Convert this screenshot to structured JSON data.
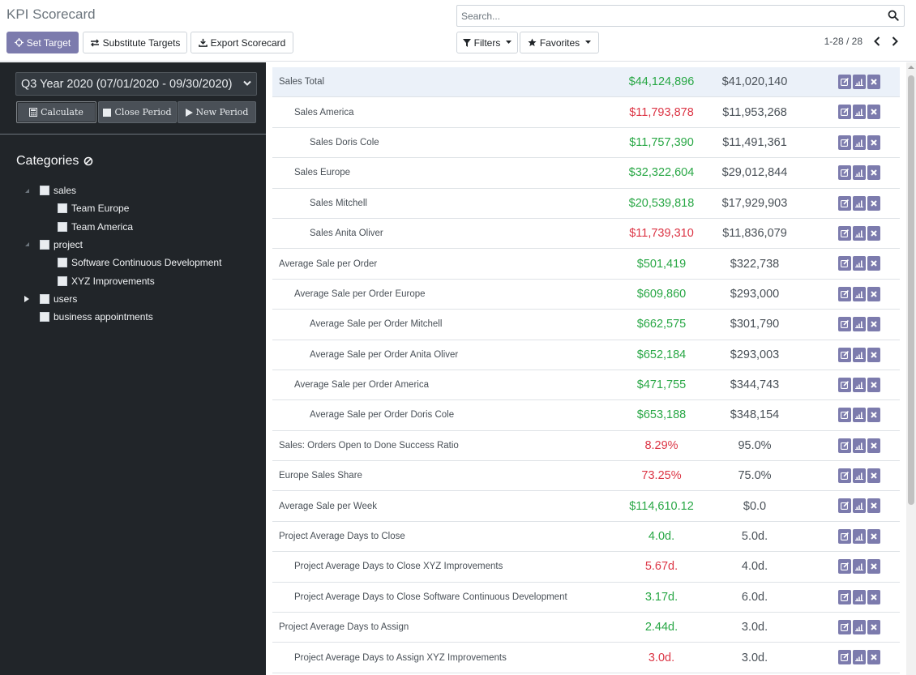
{
  "app": {
    "title": "KPI Scorecard"
  },
  "search": {
    "placeholder": "Search..."
  },
  "toolbar": {
    "set_target": "Set Target",
    "substitute_targets": "Substitute Targets",
    "export_scorecard": "Export Scorecard",
    "filters": "Filters",
    "favorites": "Favorites"
  },
  "pager": {
    "label": "1-28 / 28"
  },
  "sidebar": {
    "period": "Q3 Year 2020 (07/01/2020 - 09/30/2020)",
    "calculate": "Calculate",
    "close_period": "Close Period",
    "new_period": "New Period",
    "categories_title": "Categories",
    "categories": [
      {
        "label": "sales",
        "level": 0,
        "toggle": "collapse"
      },
      {
        "label": "Team Europe",
        "level": 1
      },
      {
        "label": "Team America",
        "level": 1
      },
      {
        "label": "project",
        "level": 0,
        "toggle": "collapse"
      },
      {
        "label": "Software Continuous Development",
        "level": 1
      },
      {
        "label": "XYZ Improvements",
        "level": 1
      },
      {
        "label": "users",
        "level": 0,
        "toggle": "expand"
      },
      {
        "label": "business appointments",
        "level": 0
      }
    ]
  },
  "colors": {
    "good": "#28a745",
    "bad": "#dc3545",
    "accent": "#7c7bad"
  },
  "kpis": [
    {
      "name": "Sales Total",
      "level": 0,
      "actual": "$44,124,896",
      "target": "$41,020,140",
      "status": "good",
      "highlight": true
    },
    {
      "name": "Sales America",
      "level": 1,
      "actual": "$11,793,878",
      "target": "$11,953,268",
      "status": "bad"
    },
    {
      "name": "Sales Doris Cole",
      "level": 2,
      "actual": "$11,757,390",
      "target": "$11,491,361",
      "status": "good"
    },
    {
      "name": "Sales Europe",
      "level": 1,
      "actual": "$32,322,604",
      "target": "$29,012,844",
      "status": "good"
    },
    {
      "name": "Sales Mitchell",
      "level": 2,
      "actual": "$20,539,818",
      "target": "$17,929,903",
      "status": "good"
    },
    {
      "name": "Sales Anita Oliver",
      "level": 2,
      "actual": "$11,739,310",
      "target": "$11,836,079",
      "status": "bad"
    },
    {
      "name": "Average Sale per Order",
      "level": 0,
      "actual": "$501,419",
      "target": "$322,738",
      "status": "good"
    },
    {
      "name": "Average Sale per Order Europe",
      "level": 1,
      "actual": "$609,860",
      "target": "$293,000",
      "status": "good"
    },
    {
      "name": "Average Sale per Order Mitchell",
      "level": 2,
      "actual": "$662,575",
      "target": "$301,790",
      "status": "good"
    },
    {
      "name": "Average Sale per Order Anita Oliver",
      "level": 2,
      "actual": "$652,184",
      "target": "$293,003",
      "status": "good"
    },
    {
      "name": "Average Sale per Order America",
      "level": 1,
      "actual": "$471,755",
      "target": "$344,743",
      "status": "good"
    },
    {
      "name": "Average Sale per Order Doris Cole",
      "level": 2,
      "actual": "$653,188",
      "target": "$348,154",
      "status": "good"
    },
    {
      "name": "Sales: Orders Open to Done Success Ratio",
      "level": 0,
      "actual": "8.29%",
      "target": "95.0%",
      "status": "bad"
    },
    {
      "name": "Europe Sales Share",
      "level": 0,
      "actual": "73.25%",
      "target": "75.0%",
      "status": "bad"
    },
    {
      "name": "Average Sale per Week",
      "level": 0,
      "actual": "$114,610.12",
      "target": "$0.0",
      "status": "good"
    },
    {
      "name": "Project Average Days to Close",
      "level": 0,
      "actual": "4.0d.",
      "target": "5.0d.",
      "status": "good"
    },
    {
      "name": "Project Average Days to Close XYZ Improvements",
      "level": 1,
      "actual": "5.67d.",
      "target": "4.0d.",
      "status": "bad"
    },
    {
      "name": "Project Average Days to Close Software Continuous Development",
      "level": 1,
      "actual": "3.17d.",
      "target": "6.0d.",
      "status": "good"
    },
    {
      "name": "Project Average Days to Assign",
      "level": 0,
      "actual": "2.44d.",
      "target": "3.0d.",
      "status": "good"
    },
    {
      "name": "Project Average Days to Assign XYZ Improvements",
      "level": 1,
      "actual": "3.0d.",
      "target": "3.0d.",
      "status": "bad"
    }
  ]
}
